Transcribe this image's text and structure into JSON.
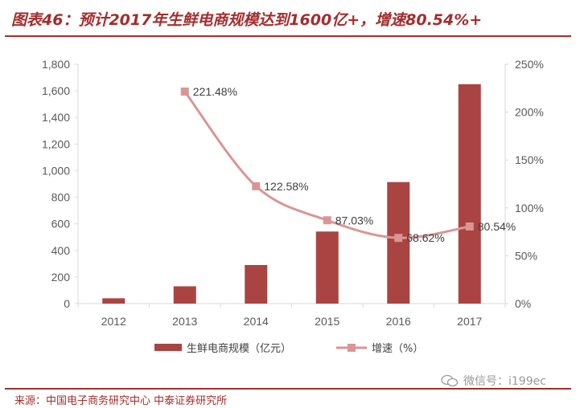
{
  "header": {
    "title": "图表46：预计2017年生鲜电商规模达到1600亿+，增速80.54%+"
  },
  "footer": {
    "source": "来源：中国电子商务研究中心 中泰证券研究所"
  },
  "watermark": {
    "text": "微信号：i199ec",
    "icon": "wechat-icon"
  },
  "colors": {
    "bar": "#a94442",
    "line": "#d99694",
    "accent": "#a32d2d",
    "axis": "#d9d9d9"
  },
  "chart_data": {
    "type": "bar",
    "title": "预计2017年生鲜电商规模达到1600亿+，增速80.54%+",
    "categories": [
      "2012",
      "2013",
      "2014",
      "2015",
      "2016",
      "2017"
    ],
    "series": [
      {
        "name": "生鲜电商规模（亿元）",
        "type": "bar",
        "axis": "left",
        "values": [
          40,
          130,
          290,
          542,
          914,
          1650
        ]
      },
      {
        "name": "增速（%）",
        "type": "line",
        "axis": "right",
        "values": [
          null,
          221.48,
          122.58,
          87.03,
          68.62,
          80.54
        ],
        "labels": [
          "",
          "221.48%",
          "122.58%",
          "87.03%",
          "68.62%",
          "80.54%"
        ]
      }
    ],
    "y_left": {
      "min": 0,
      "max": 1800,
      "ticks": [
        0,
        200,
        400,
        600,
        800,
        1000,
        1200,
        1400,
        1600,
        1800
      ],
      "tick_labels": [
        "0",
        "200",
        "400",
        "600",
        "800",
        "1,000",
        "1,200",
        "1,400",
        "1,600",
        "1,800"
      ]
    },
    "y_right": {
      "min": 0,
      "max": 250,
      "ticks": [
        0,
        50,
        100,
        150,
        200,
        250
      ],
      "tick_labels": [
        "0%",
        "50%",
        "100%",
        "150%",
        "200%",
        "250%"
      ]
    },
    "legend_position": "bottom",
    "grid": false
  }
}
